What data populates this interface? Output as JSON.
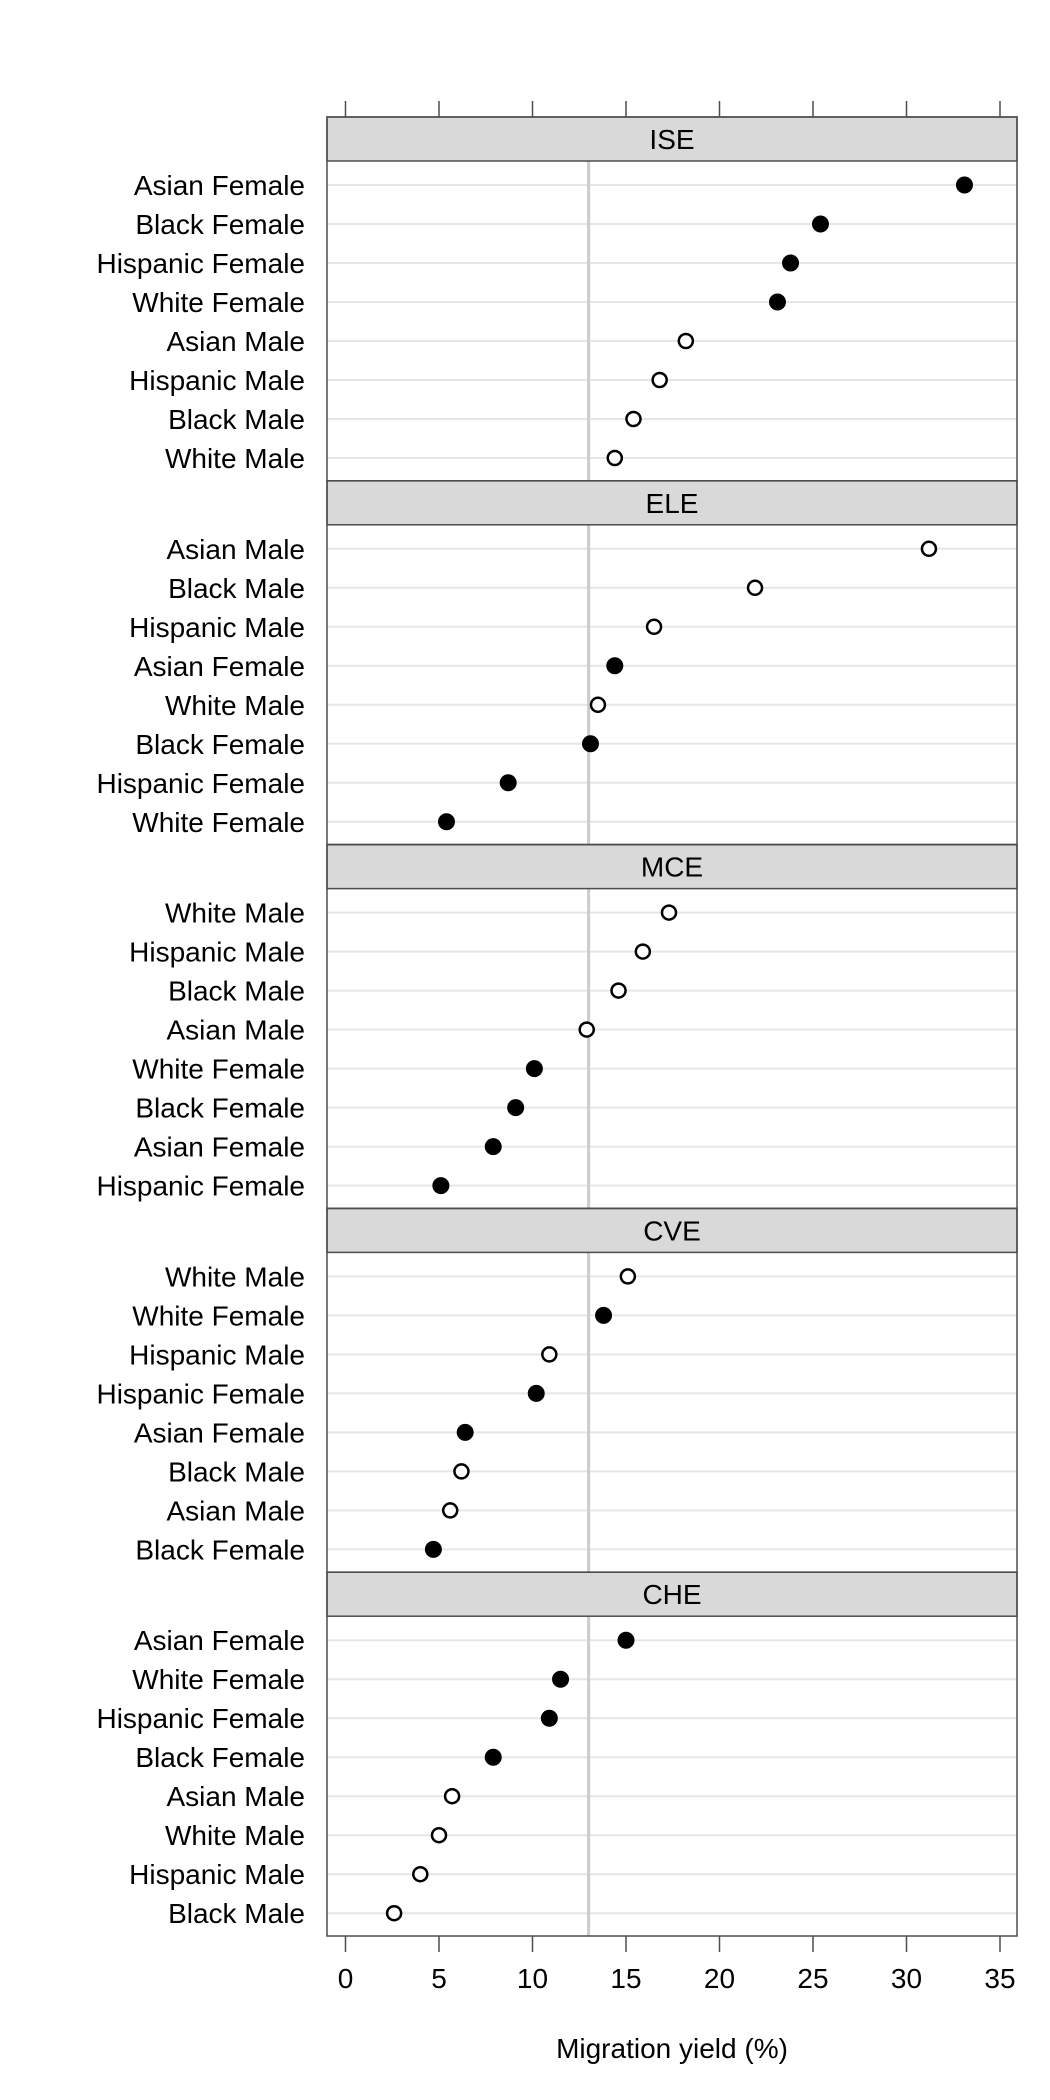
{
  "chart_data": {
    "type": "scatter",
    "subtype": "dot-plot",
    "xlabel": "Migration yield (%)",
    "xlim": [
      -1,
      36
    ],
    "xticks": [
      0,
      5,
      10,
      15,
      20,
      25,
      30,
      35
    ],
    "reference_line": 13,
    "grid": true,
    "marker_legend": {
      "Female": "filled circle",
      "Male": "open circle"
    },
    "colors": {
      "strip_bg": "#d9d9d9",
      "grid": "#e6e6e6",
      "reference_line": "#cccccc",
      "marker": "#000000",
      "frame": "#4d4d4d"
    },
    "panels": [
      {
        "name": "ISE",
        "points": [
          {
            "label": "Asian Female",
            "value": 33.1,
            "sex": "Female"
          },
          {
            "label": "Black Female",
            "value": 25.4,
            "sex": "Female"
          },
          {
            "label": "Hispanic Female",
            "value": 23.8,
            "sex": "Female"
          },
          {
            "label": "White Female",
            "value": 23.1,
            "sex": "Female"
          },
          {
            "label": "Asian Male",
            "value": 18.2,
            "sex": "Male"
          },
          {
            "label": "Hispanic Male",
            "value": 16.8,
            "sex": "Male"
          },
          {
            "label": "Black Male",
            "value": 15.4,
            "sex": "Male"
          },
          {
            "label": "White Male",
            "value": 14.4,
            "sex": "Male"
          }
        ]
      },
      {
        "name": "ELE",
        "points": [
          {
            "label": "Asian Male",
            "value": 31.2,
            "sex": "Male"
          },
          {
            "label": "Black Male",
            "value": 21.9,
            "sex": "Male"
          },
          {
            "label": "Hispanic Male",
            "value": 16.5,
            "sex": "Male"
          },
          {
            "label": "Asian Female",
            "value": 14.4,
            "sex": "Female"
          },
          {
            "label": "White Male",
            "value": 13.5,
            "sex": "Male"
          },
          {
            "label": "Black Female",
            "value": 13.1,
            "sex": "Female"
          },
          {
            "label": "Hispanic Female",
            "value": 8.7,
            "sex": "Female"
          },
          {
            "label": "White Female",
            "value": 5.4,
            "sex": "Female"
          }
        ]
      },
      {
        "name": "MCE",
        "points": [
          {
            "label": "White Male",
            "value": 17.3,
            "sex": "Male"
          },
          {
            "label": "Hispanic Male",
            "value": 15.9,
            "sex": "Male"
          },
          {
            "label": "Black Male",
            "value": 14.6,
            "sex": "Male"
          },
          {
            "label": "Asian Male",
            "value": 12.9,
            "sex": "Male"
          },
          {
            "label": "White Female",
            "value": 10.1,
            "sex": "Female"
          },
          {
            "label": "Black Female",
            "value": 9.1,
            "sex": "Female"
          },
          {
            "label": "Asian Female",
            "value": 7.9,
            "sex": "Female"
          },
          {
            "label": "Hispanic Female",
            "value": 5.1,
            "sex": "Female"
          }
        ]
      },
      {
        "name": "CVE",
        "points": [
          {
            "label": "White Male",
            "value": 15.1,
            "sex": "Male"
          },
          {
            "label": "White Female",
            "value": 13.8,
            "sex": "Female"
          },
          {
            "label": "Hispanic Male",
            "value": 10.9,
            "sex": "Male"
          },
          {
            "label": "Hispanic Female",
            "value": 10.2,
            "sex": "Female"
          },
          {
            "label": "Asian Female",
            "value": 6.4,
            "sex": "Female"
          },
          {
            "label": "Black Male",
            "value": 6.2,
            "sex": "Male"
          },
          {
            "label": "Asian Male",
            "value": 5.6,
            "sex": "Male"
          },
          {
            "label": "Black Female",
            "value": 4.7,
            "sex": "Female"
          }
        ]
      },
      {
        "name": "CHE",
        "points": [
          {
            "label": "Asian Female",
            "value": 15.0,
            "sex": "Female"
          },
          {
            "label": "White Female",
            "value": 11.5,
            "sex": "Female"
          },
          {
            "label": "Hispanic Female",
            "value": 10.9,
            "sex": "Female"
          },
          {
            "label": "Black Female",
            "value": 7.9,
            "sex": "Female"
          },
          {
            "label": "Asian Male",
            "value": 5.7,
            "sex": "Male"
          },
          {
            "label": "White Male",
            "value": 5.0,
            "sex": "Male"
          },
          {
            "label": "Hispanic Male",
            "value": 4.0,
            "sex": "Male"
          },
          {
            "label": "Black Male",
            "value": 2.6,
            "sex": "Male"
          }
        ]
      }
    ]
  }
}
